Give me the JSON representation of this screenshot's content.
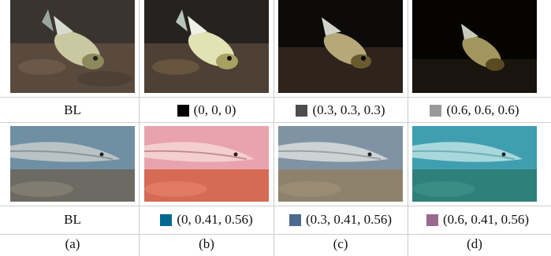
{
  "row1": {
    "labels": [
      {
        "text": "BL",
        "swatch": null
      },
      {
        "text": "(0, 0, 0)",
        "swatch": "#000000"
      },
      {
        "text": "(0.3, 0.3, 0.3)",
        "swatch": "#4d4d4d"
      },
      {
        "text": "(0.6, 0.6, 0.6)",
        "swatch": "#999999"
      }
    ]
  },
  "row2": {
    "labels": [
      {
        "text": "BL",
        "swatch": null
      },
      {
        "text": "(0, 0.41, 0.56)",
        "swatch": "#00698f"
      },
      {
        "text": "(0.3, 0.41, 0.56)",
        "swatch": "#4d698f"
      },
      {
        "text": "(0.6, 0.41, 0.56)",
        "swatch": "#99698f"
      }
    ]
  },
  "captions": [
    "(a)",
    "(b)",
    "(c)",
    "(d)"
  ]
}
